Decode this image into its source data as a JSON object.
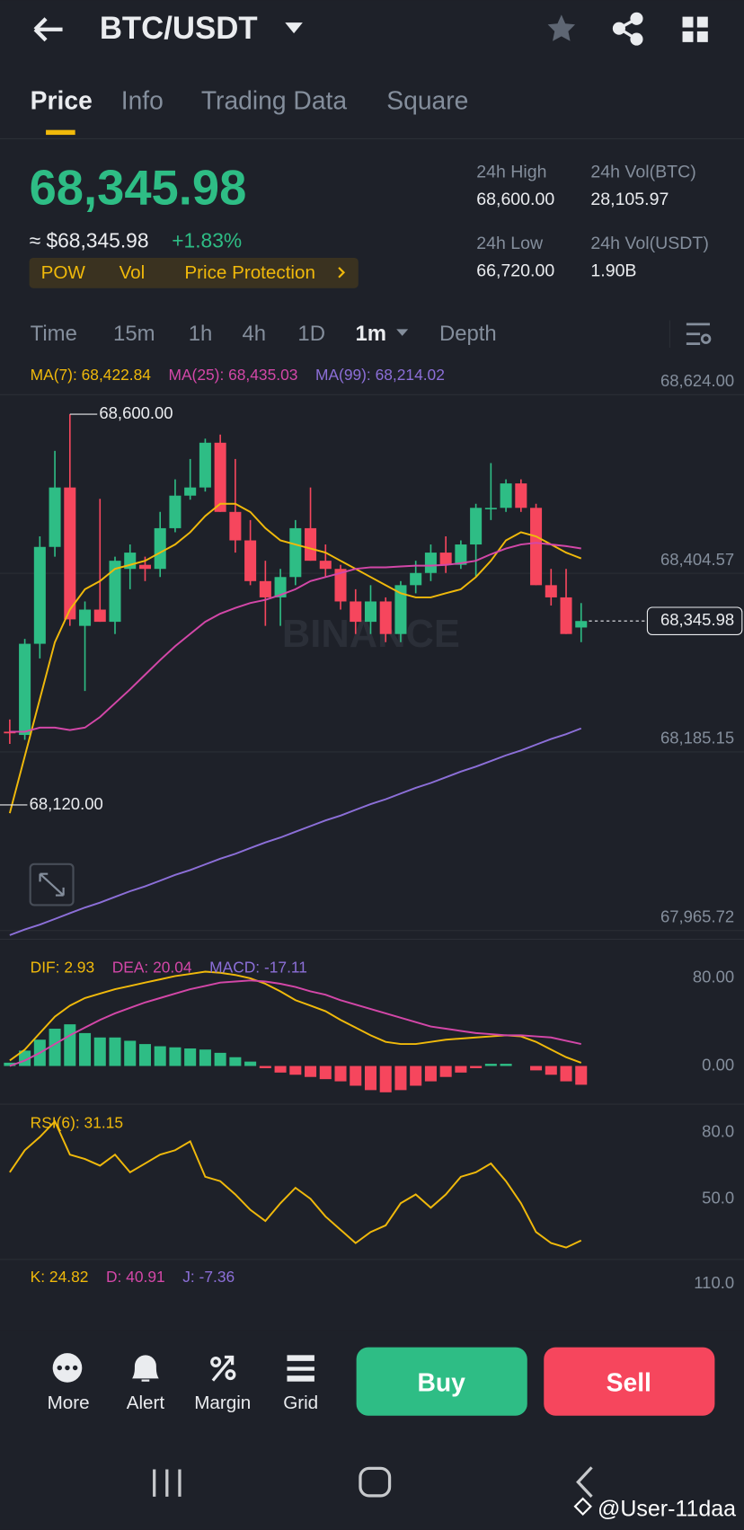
{
  "header": {
    "title": "BTC/USDT"
  },
  "tabs": [
    "Price",
    "Info",
    "Trading Data",
    "Square"
  ],
  "ticker": {
    "price": "68,345.98",
    "fiat": "≈ $68,345.98",
    "change": "+1.83%",
    "tags": [
      "POW",
      "Vol",
      "Price Protection"
    ],
    "stats": [
      {
        "label": "24h High",
        "value": "68,600.00"
      },
      {
        "label": "24h Vol(BTC)",
        "value": "28,105.97"
      },
      {
        "label": "24h Low",
        "value": "66,720.00"
      },
      {
        "label": "24h Vol(USDT)",
        "value": "1.90B"
      }
    ]
  },
  "intervals": [
    "Time",
    "15m",
    "1h",
    "4h",
    "1D",
    "1m",
    "Depth"
  ],
  "chart_data": [
    {
      "type": "candlestick",
      "up_color": "#2ebd85",
      "down_color": "#f6465d",
      "open": [
        68210,
        68206,
        68318,
        68437,
        68510,
        68340,
        68360,
        68345,
        68410,
        68415,
        68410,
        68460,
        68500,
        68510,
        68565,
        68480,
        68445,
        68395,
        68375,
        68400,
        68460,
        68420,
        68410,
        68370,
        68345,
        68370,
        68330,
        68390,
        68405,
        68430,
        68415,
        68440,
        68485,
        68485,
        68515,
        68485,
        68390,
        68375,
        68338
      ],
      "high": [
        68225,
        68324,
        68450,
        68555,
        68600,
        68370,
        68496,
        68425,
        68440,
        68425,
        68480,
        68520,
        68545,
        68570,
        68575,
        68545,
        68470,
        68420,
        68410,
        68470,
        68510,
        68440,
        68415,
        68385,
        68390,
        68375,
        68395,
        68420,
        68440,
        68450,
        68445,
        68490,
        68540,
        68520,
        68520,
        68490,
        68410,
        68410,
        68368
      ],
      "low": [
        68195,
        68200,
        68300,
        68425,
        68340,
        68260,
        68345,
        68330,
        68385,
        68395,
        68400,
        68455,
        68495,
        68505,
        68480,
        68430,
        68390,
        68340,
        68340,
        68390,
        68420,
        68400,
        68360,
        68330,
        68330,
        68320,
        68320,
        68380,
        68395,
        68405,
        68410,
        68400,
        68470,
        68480,
        68480,
        68390,
        68365,
        68330,
        68320
      ],
      "close": [
        68208,
        68318,
        68437,
        68510,
        68348,
        68360,
        68345,
        68420,
        68430,
        68410,
        68460,
        68500,
        68510,
        68565,
        68480,
        68445,
        68395,
        68375,
        68400,
        68460,
        68420,
        68410,
        68370,
        68345,
        68370,
        68330,
        68390,
        68405,
        68430,
        68415,
        68440,
        68485,
        68485,
        68515,
        68485,
        68390,
        68375,
        68330,
        68345.98
      ],
      "series": [
        {
          "name": "MA(7): 68,422.84",
          "color": "#f0b90b",
          "values": [
            68110,
            68180,
            68250,
            68320,
            68360,
            68385,
            68395,
            68410,
            68415,
            68420,
            68430,
            68440,
            68455,
            68475,
            68490,
            68490,
            68480,
            68460,
            68445,
            68440,
            68435,
            68430,
            68420,
            68410,
            68400,
            68390,
            68380,
            68375,
            68375,
            68380,
            68385,
            68400,
            68420,
            68445,
            68455,
            68450,
            68440,
            68430,
            68422.84
          ]
        },
        {
          "name": "MA(25): 68,435.03",
          "color": "#d347a8",
          "values": [
            68210,
            68210,
            68215,
            68215,
            68212,
            68215,
            68228,
            68245,
            68262,
            68280,
            68298,
            68315,
            68330,
            68345,
            68355,
            68362,
            68368,
            68372,
            68378,
            68385,
            68395,
            68400,
            68405,
            68410,
            68412,
            68412,
            68413,
            68414,
            68414,
            68415,
            68417,
            68420,
            68428,
            68435,
            68440,
            68442,
            68440,
            68438,
            68435.03
          ]
        },
        {
          "name": "MA(99): 68,214.02",
          "color": "#8c6fd8",
          "values": [
            67960,
            67967,
            67973,
            67980,
            67987,
            67994,
            68000,
            68007,
            68014,
            68020,
            68027,
            68034,
            68040,
            68047,
            68054,
            68060,
            68067,
            68074,
            68080,
            68087,
            68094,
            68101,
            68107,
            68114,
            68121,
            68127,
            68134,
            68141,
            68147,
            68154,
            68161,
            68167,
            68174,
            68181,
            68187,
            68194,
            68201,
            68207,
            68214.02
          ]
        }
      ],
      "ylim": [
        67955,
        68665
      ],
      "yticks": [
        {
          "value": 68624,
          "label": "68,624.00"
        },
        {
          "value": 68404.57,
          "label": "68,404.57"
        },
        {
          "value": 68185.15,
          "label": "68,185.15"
        },
        {
          "value": 67965.72,
          "label": "67,965.72"
        }
      ],
      "grid": true,
      "annotations": [
        {
          "value": 68600,
          "label": "68,600.00"
        },
        {
          "value": 68120,
          "label": "68,120.00"
        }
      ],
      "last_price": {
        "value": 68345.98,
        "label": "68,345.98"
      },
      "watermark": "BINANCE"
    },
    {
      "type": "macd",
      "ylim": [
        -34,
        104
      ],
      "yticks": [
        {
          "value": 80,
          "label": "80.00"
        },
        {
          "value": 0,
          "label": "0.00"
        }
      ],
      "series": [
        {
          "name": "DIF: 2.93",
          "color": "#f0b90b",
          "kind": "line",
          "values": [
            5,
            15,
            30,
            45,
            55,
            62,
            66,
            70,
            73,
            76,
            79,
            82,
            84,
            86,
            85,
            83,
            80,
            75,
            68,
            60,
            55,
            50,
            42,
            35,
            28,
            22,
            20,
            20,
            22,
            24,
            25,
            26,
            27,
            28,
            27,
            22,
            15,
            8,
            2.93
          ]
        },
        {
          "name": "DEA: 20.04",
          "color": "#d347a8",
          "kind": "line",
          "values": [
            0,
            5,
            12,
            20,
            28,
            35,
            42,
            48,
            53,
            58,
            62,
            66,
            70,
            73,
            76,
            77,
            78,
            77,
            75,
            72,
            68,
            65,
            60,
            56,
            52,
            48,
            44,
            40,
            36,
            34,
            32,
            30,
            29,
            28,
            28,
            27,
            26,
            23,
            20.04
          ]
        },
        {
          "name": "MACD: -17.11",
          "color": "#8c6fd8",
          "kind": "bar",
          "values": [
            3,
            14,
            24,
            34,
            38,
            30,
            26,
            26,
            23,
            20,
            18,
            17,
            16,
            15,
            12,
            8,
            4,
            -2,
            -6,
            -8,
            -10,
            -12,
            -14,
            -18,
            -22,
            -24,
            -22,
            -18,
            -14,
            -10,
            -6,
            -2,
            2,
            2,
            0,
            -4,
            -8,
            -14,
            -17.11
          ]
        }
      ]
    },
    {
      "type": "rsi",
      "ylim": [
        22.6,
        88.8
      ],
      "yticks": [
        {
          "value": 80,
          "label": "80.0"
        },
        {
          "value": 50,
          "label": "50.0"
        }
      ],
      "series": [
        {
          "name": "RSI(6): 31.15",
          "color": "#f0b90b",
          "values": [
            62,
            72,
            78,
            85,
            70,
            68,
            65,
            70,
            62,
            66,
            70,
            72,
            76,
            60,
            58,
            52,
            45,
            40,
            48,
            55,
            50,
            42,
            36,
            30,
            35,
            38,
            48,
            52,
            46,
            52,
            60,
            62,
            66,
            58,
            48,
            35,
            30,
            28,
            31.15
          ]
        }
      ]
    },
    {
      "type": "kdj",
      "ylim": [
        60,
        130
      ],
      "yticks": [
        {
          "value": 110,
          "label": "110.0"
        }
      ],
      "series": [
        {
          "name": "K: 24.82",
          "color": "#f0b90b"
        },
        {
          "name": "D: 40.91",
          "color": "#d347a8"
        },
        {
          "name": "J: -7.36",
          "color": "#8c6fd8"
        }
      ]
    }
  ],
  "actions": [
    "More",
    "Alert",
    "Margin",
    "Grid"
  ],
  "buy": "Buy",
  "sell": "Sell",
  "watermark": "@User-11daa"
}
